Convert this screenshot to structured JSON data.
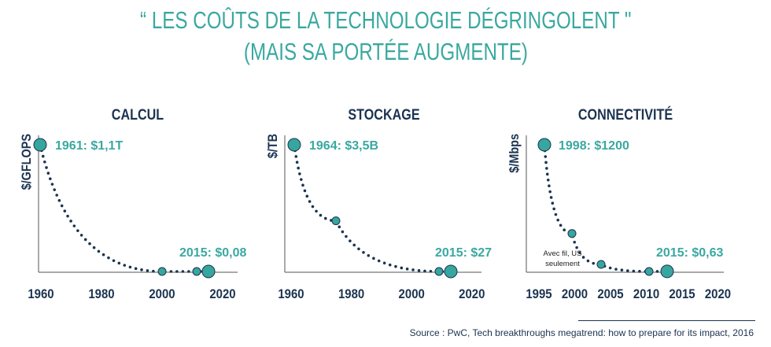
{
  "title_line1": "“ LES COÛTS DE LA TECHNOLOGIE DÉGRINGOLENT \"",
  "title_line2": "(MAIS SA PORTÉE AUGMENTE)",
  "source": "Source : PwC, Tech breakthroughs megatrend: how to prepare for its impact, 2016",
  "colors": {
    "title": "#3aa8a0",
    "marker": "#37a69e",
    "axis_text": "#1b3350",
    "curve": "#1b3350"
  },
  "chart_data": [
    {
      "type": "scatter",
      "title": "CALCUL",
      "ylabel": "$/GFLOPS",
      "xticks": [
        1960,
        1980,
        2000,
        2020
      ],
      "xlim": [
        1960,
        2022
      ],
      "points": [
        {
          "x": 1961,
          "y": 1100000000000.0,
          "label": "1961: $1,1T"
        },
        {
          "x": 2000,
          "y": 0
        },
        {
          "x": 2011,
          "y": 0
        },
        {
          "x": 2015,
          "y": 0.08,
          "label": "2015: $0,08"
        }
      ],
      "trend": "dotted"
    },
    {
      "type": "scatter",
      "title": "STOCKAGE",
      "ylabel": "$/TB",
      "xticks": [
        1960,
        1980,
        2000,
        2020
      ],
      "xlim": [
        1958,
        2022
      ],
      "points": [
        {
          "x": 1964,
          "y": 3500000000.0,
          "label": "1964: $3,5B"
        },
        {
          "x": 1975,
          "y": 1400000000.0
        },
        {
          "x": 2009,
          "y": 0
        },
        {
          "x": 2015,
          "y": 27,
          "label": "2015: $27"
        }
      ],
      "trend": "dotted"
    },
    {
      "type": "scatter",
      "title": "CONNECTIVITÉ",
      "ylabel": "$/Mbps",
      "xticks": [
        1995,
        2000,
        2005,
        2010,
        2015,
        2020
      ],
      "xlim": [
        1993,
        2021
      ],
      "annotation": "Avec fil, US seulement",
      "points": [
        {
          "x": 1998,
          "y": 1200,
          "label": "1998: $1200"
        },
        {
          "x": 2000,
          "y": 360
        },
        {
          "x": 2004,
          "y": 67
        },
        {
          "x": 2010,
          "y": 0
        },
        {
          "x": 2015,
          "y": 0.63,
          "label": "2015: $0,63"
        }
      ],
      "trend": "dotted"
    }
  ]
}
